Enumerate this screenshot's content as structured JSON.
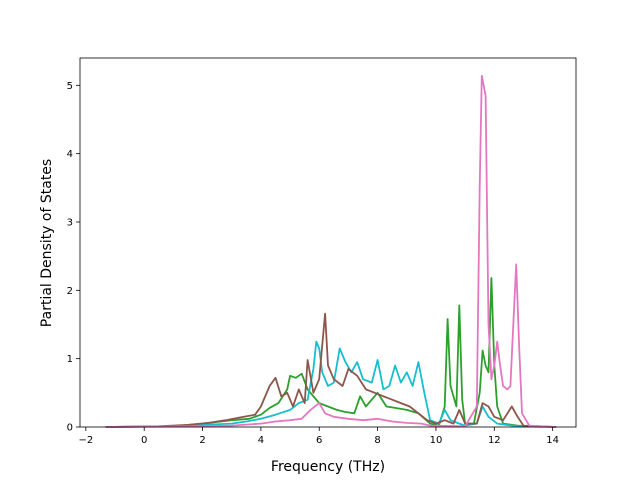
{
  "chart_data": {
    "type": "line",
    "title": "",
    "xlabel": "Frequency (THz)",
    "ylabel": "Partial Density of States",
    "xlim": [
      -2.2,
      14.8
    ],
    "ylim": [
      0,
      5.4
    ],
    "xticks": [
      -2,
      0,
      2,
      4,
      6,
      8,
      10,
      12,
      14
    ],
    "yticks": [
      0,
      1,
      2,
      3,
      4,
      5
    ],
    "grid": false,
    "legend": "none",
    "series": [
      {
        "color": "#2ca02c",
        "points": [
          [
            -1.3,
            0
          ],
          [
            1.0,
            0.01
          ],
          [
            2.0,
            0.05
          ],
          [
            3.0,
            0.1
          ],
          [
            3.6,
            0.12
          ],
          [
            4.0,
            0.18
          ],
          [
            4.3,
            0.28
          ],
          [
            4.6,
            0.35
          ],
          [
            4.9,
            0.55
          ],
          [
            5.0,
            0.75
          ],
          [
            5.2,
            0.72
          ],
          [
            5.4,
            0.78
          ],
          [
            5.6,
            0.55
          ],
          [
            5.8,
            0.45
          ],
          [
            6.0,
            0.35
          ],
          [
            6.3,
            0.3
          ],
          [
            6.6,
            0.25
          ],
          [
            6.9,
            0.22
          ],
          [
            7.2,
            0.2
          ],
          [
            7.4,
            0.45
          ],
          [
            7.6,
            0.3
          ],
          [
            8.0,
            0.5
          ],
          [
            8.3,
            0.3
          ],
          [
            8.6,
            0.28
          ],
          [
            9.0,
            0.25
          ],
          [
            9.4,
            0.2
          ],
          [
            9.8,
            0.05
          ],
          [
            10.1,
            0.02
          ],
          [
            10.3,
            0.3
          ],
          [
            10.4,
            1.58
          ],
          [
            10.5,
            0.6
          ],
          [
            10.7,
            0.3
          ],
          [
            10.8,
            1.78
          ],
          [
            10.9,
            0.4
          ],
          [
            11.0,
            0.05
          ],
          [
            11.3,
            0.05
          ],
          [
            11.5,
            0.5
          ],
          [
            11.6,
            1.12
          ],
          [
            11.7,
            0.9
          ],
          [
            11.8,
            0.8
          ],
          [
            11.9,
            2.18
          ],
          [
            12.0,
            0.9
          ],
          [
            12.1,
            0.3
          ],
          [
            12.3,
            0.05
          ],
          [
            12.8,
            0.02
          ],
          [
            14.1,
            0
          ]
        ]
      },
      {
        "color": "#17becf",
        "points": [
          [
            -1.3,
            0
          ],
          [
            1.0,
            0.01
          ],
          [
            2.0,
            0.03
          ],
          [
            3.0,
            0.05
          ],
          [
            3.5,
            0.08
          ],
          [
            4.0,
            0.12
          ],
          [
            4.5,
            0.18
          ],
          [
            5.0,
            0.25
          ],
          [
            5.3,
            0.35
          ],
          [
            5.6,
            0.4
          ],
          [
            5.8,
            0.85
          ],
          [
            5.9,
            1.25
          ],
          [
            6.0,
            1.15
          ],
          [
            6.1,
            0.8
          ],
          [
            6.3,
            0.6
          ],
          [
            6.5,
            0.65
          ],
          [
            6.7,
            1.15
          ],
          [
            6.9,
            0.95
          ],
          [
            7.1,
            0.8
          ],
          [
            7.3,
            0.95
          ],
          [
            7.5,
            0.7
          ],
          [
            7.8,
            0.65
          ],
          [
            8.0,
            0.98
          ],
          [
            8.2,
            0.55
          ],
          [
            8.4,
            0.6
          ],
          [
            8.6,
            0.9
          ],
          [
            8.8,
            0.65
          ],
          [
            9.0,
            0.8
          ],
          [
            9.2,
            0.6
          ],
          [
            9.4,
            0.95
          ],
          [
            9.6,
            0.5
          ],
          [
            9.8,
            0.1
          ],
          [
            10.1,
            0.05
          ],
          [
            10.3,
            0.25
          ],
          [
            10.5,
            0.1
          ],
          [
            10.8,
            0.05
          ],
          [
            11.0,
            0.02
          ],
          [
            11.4,
            0.05
          ],
          [
            11.6,
            0.3
          ],
          [
            11.8,
            0.15
          ],
          [
            12.1,
            0.05
          ],
          [
            12.8,
            0.01
          ],
          [
            14.1,
            0
          ]
        ]
      },
      {
        "color": "#8c564b",
        "points": [
          [
            -1.3,
            0
          ],
          [
            0.5,
            0.01
          ],
          [
            1.5,
            0.03
          ],
          [
            2.2,
            0.06
          ],
          [
            2.8,
            0.1
          ],
          [
            3.3,
            0.14
          ],
          [
            3.8,
            0.18
          ],
          [
            4.0,
            0.3
          ],
          [
            4.3,
            0.6
          ],
          [
            4.5,
            0.72
          ],
          [
            4.7,
            0.45
          ],
          [
            4.9,
            0.5
          ],
          [
            5.1,
            0.3
          ],
          [
            5.3,
            0.55
          ],
          [
            5.5,
            0.35
          ],
          [
            5.6,
            0.98
          ],
          [
            5.8,
            0.5
          ],
          [
            6.0,
            0.7
          ],
          [
            6.2,
            1.66
          ],
          [
            6.3,
            0.9
          ],
          [
            6.5,
            0.7
          ],
          [
            6.8,
            0.6
          ],
          [
            7.0,
            0.85
          ],
          [
            7.3,
            0.75
          ],
          [
            7.6,
            0.55
          ],
          [
            7.9,
            0.5
          ],
          [
            8.2,
            0.45
          ],
          [
            8.5,
            0.4
          ],
          [
            8.8,
            0.35
          ],
          [
            9.1,
            0.3
          ],
          [
            9.4,
            0.2
          ],
          [
            9.7,
            0.1
          ],
          [
            10.0,
            0.05
          ],
          [
            10.3,
            0.1
          ],
          [
            10.6,
            0.05
          ],
          [
            10.8,
            0.25
          ],
          [
            11.0,
            0.05
          ],
          [
            11.4,
            0.05
          ],
          [
            11.6,
            0.35
          ],
          [
            11.8,
            0.3
          ],
          [
            12.0,
            0.15
          ],
          [
            12.3,
            0.1
          ],
          [
            12.6,
            0.3
          ],
          [
            12.8,
            0.15
          ],
          [
            13.0,
            0.02
          ],
          [
            14.1,
            0
          ]
        ]
      },
      {
        "color": "#e377c2",
        "points": [
          [
            -1.3,
            0
          ],
          [
            2.0,
            0.01
          ],
          [
            3.0,
            0.02
          ],
          [
            4.0,
            0.05
          ],
          [
            4.5,
            0.08
          ],
          [
            5.0,
            0.1
          ],
          [
            5.4,
            0.12
          ],
          [
            5.7,
            0.25
          ],
          [
            6.0,
            0.35
          ],
          [
            6.2,
            0.2
          ],
          [
            6.5,
            0.15
          ],
          [
            7.0,
            0.12
          ],
          [
            7.5,
            0.1
          ],
          [
            8.0,
            0.12
          ],
          [
            8.5,
            0.08
          ],
          [
            9.0,
            0.06
          ],
          [
            9.5,
            0.05
          ],
          [
            9.8,
            0.02
          ],
          [
            11.0,
            0.01
          ],
          [
            11.4,
            0.3
          ],
          [
            11.5,
            3.5
          ],
          [
            11.57,
            5.14
          ],
          [
            11.7,
            4.85
          ],
          [
            11.8,
            1.5
          ],
          [
            11.9,
            0.7
          ],
          [
            12.0,
            0.9
          ],
          [
            12.1,
            1.25
          ],
          [
            12.2,
            0.9
          ],
          [
            12.3,
            0.6
          ],
          [
            12.45,
            0.55
          ],
          [
            12.55,
            0.6
          ],
          [
            12.65,
            1.5
          ],
          [
            12.75,
            2.38
          ],
          [
            12.85,
            1.2
          ],
          [
            12.95,
            0.2
          ],
          [
            13.2,
            0.02
          ],
          [
            14.1,
            0
          ]
        ]
      }
    ]
  }
}
